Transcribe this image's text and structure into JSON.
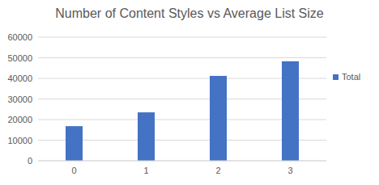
{
  "chart_data": {
    "type": "bar",
    "title": "Number of Content Styles vs Average List Size",
    "categories": [
      "0",
      "1",
      "2",
      "3"
    ],
    "series": [
      {
        "name": "Total",
        "color": "#4472c4",
        "values": [
          16800,
          23500,
          41200,
          48300
        ]
      }
    ],
    "ylim": [
      0,
      60000
    ],
    "yticks": [
      0,
      10000,
      20000,
      30000,
      40000,
      50000,
      60000
    ],
    "grid": true,
    "legend": "right"
  }
}
